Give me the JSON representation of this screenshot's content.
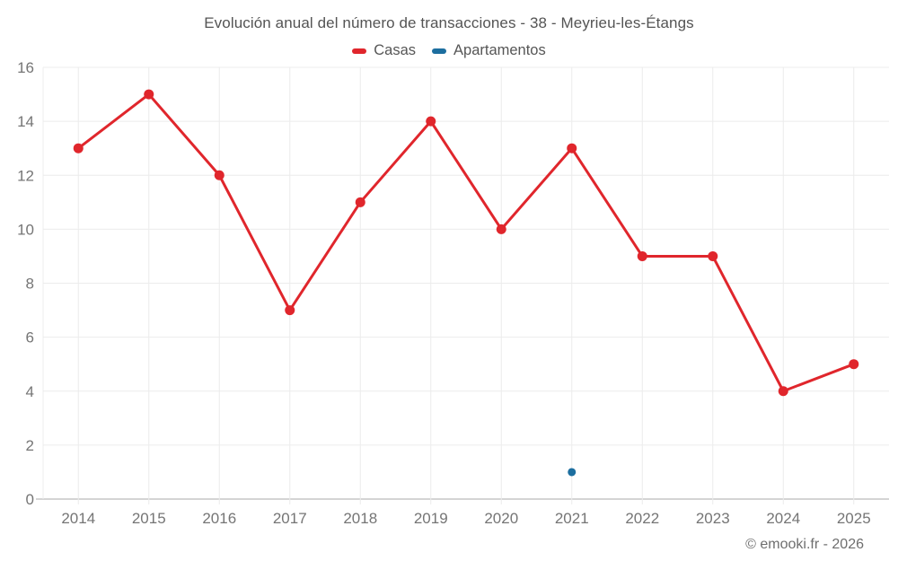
{
  "chart_data": {
    "type": "line",
    "title": "Evolución anual del número de transacciones - 38 - Meyrieu-les-Étangs",
    "categories": [
      "2014",
      "2015",
      "2016",
      "2017",
      "2018",
      "2019",
      "2020",
      "2021",
      "2022",
      "2023",
      "2024",
      "2025"
    ],
    "series": [
      {
        "name": "Casas",
        "color": "#e0262c",
        "values": [
          13,
          15,
          12,
          7,
          11,
          14,
          10,
          13,
          9,
          9,
          4,
          5
        ]
      },
      {
        "name": "Apartamentos",
        "color": "#1c6e9f",
        "values": [
          null,
          null,
          null,
          null,
          null,
          null,
          null,
          1,
          null,
          null,
          null,
          null
        ]
      }
    ],
    "ylim": [
      0,
      16
    ],
    "ytick_step": 2,
    "grid": true,
    "legend_position": "top",
    "colors": {
      "grid_line": "#ececec",
      "axis_line": "#c6c6c6",
      "axis_label": "#757575",
      "title_text": "#545454",
      "legend_text": "#565656",
      "copyright_text": "#6e6e6e"
    }
  },
  "footer": {
    "copyright": "© emooki.fr - 2026"
  }
}
